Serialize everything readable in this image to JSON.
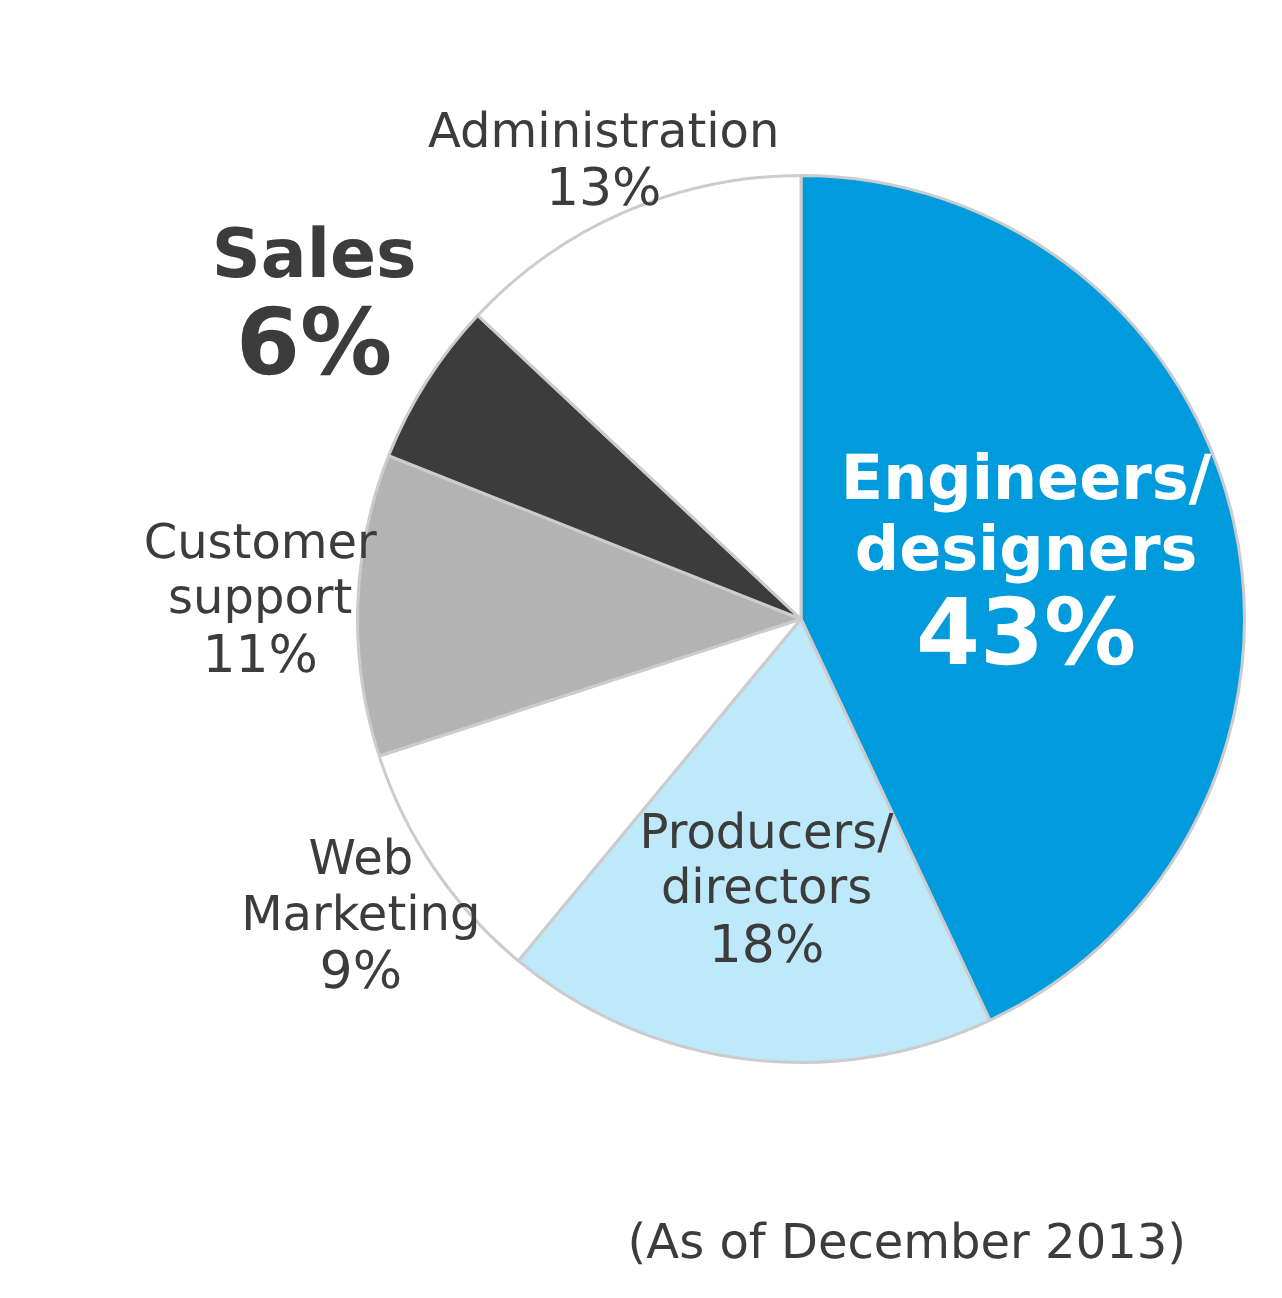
{
  "chart_data": {
    "type": "pie",
    "categories": [
      "Engineers/\ndesigners",
      "Producers/\ndirectors",
      "Web\nMarketing",
      "Customer\nsupport",
      "Sales",
      "Administration"
    ],
    "values": [
      43,
      18,
      9,
      11,
      6,
      13
    ],
    "colors": [
      "#009bdc",
      "#bde9fb",
      "#ffffff",
      "#b3b3b3",
      "#3c3c3c",
      "#ffffff"
    ],
    "legend": false,
    "value_labels": [
      "43%",
      "18%",
      "9%",
      "11%",
      "6%",
      "13%"
    ],
    "annotations": [
      "(As of December 2013)"
    ]
  }
}
